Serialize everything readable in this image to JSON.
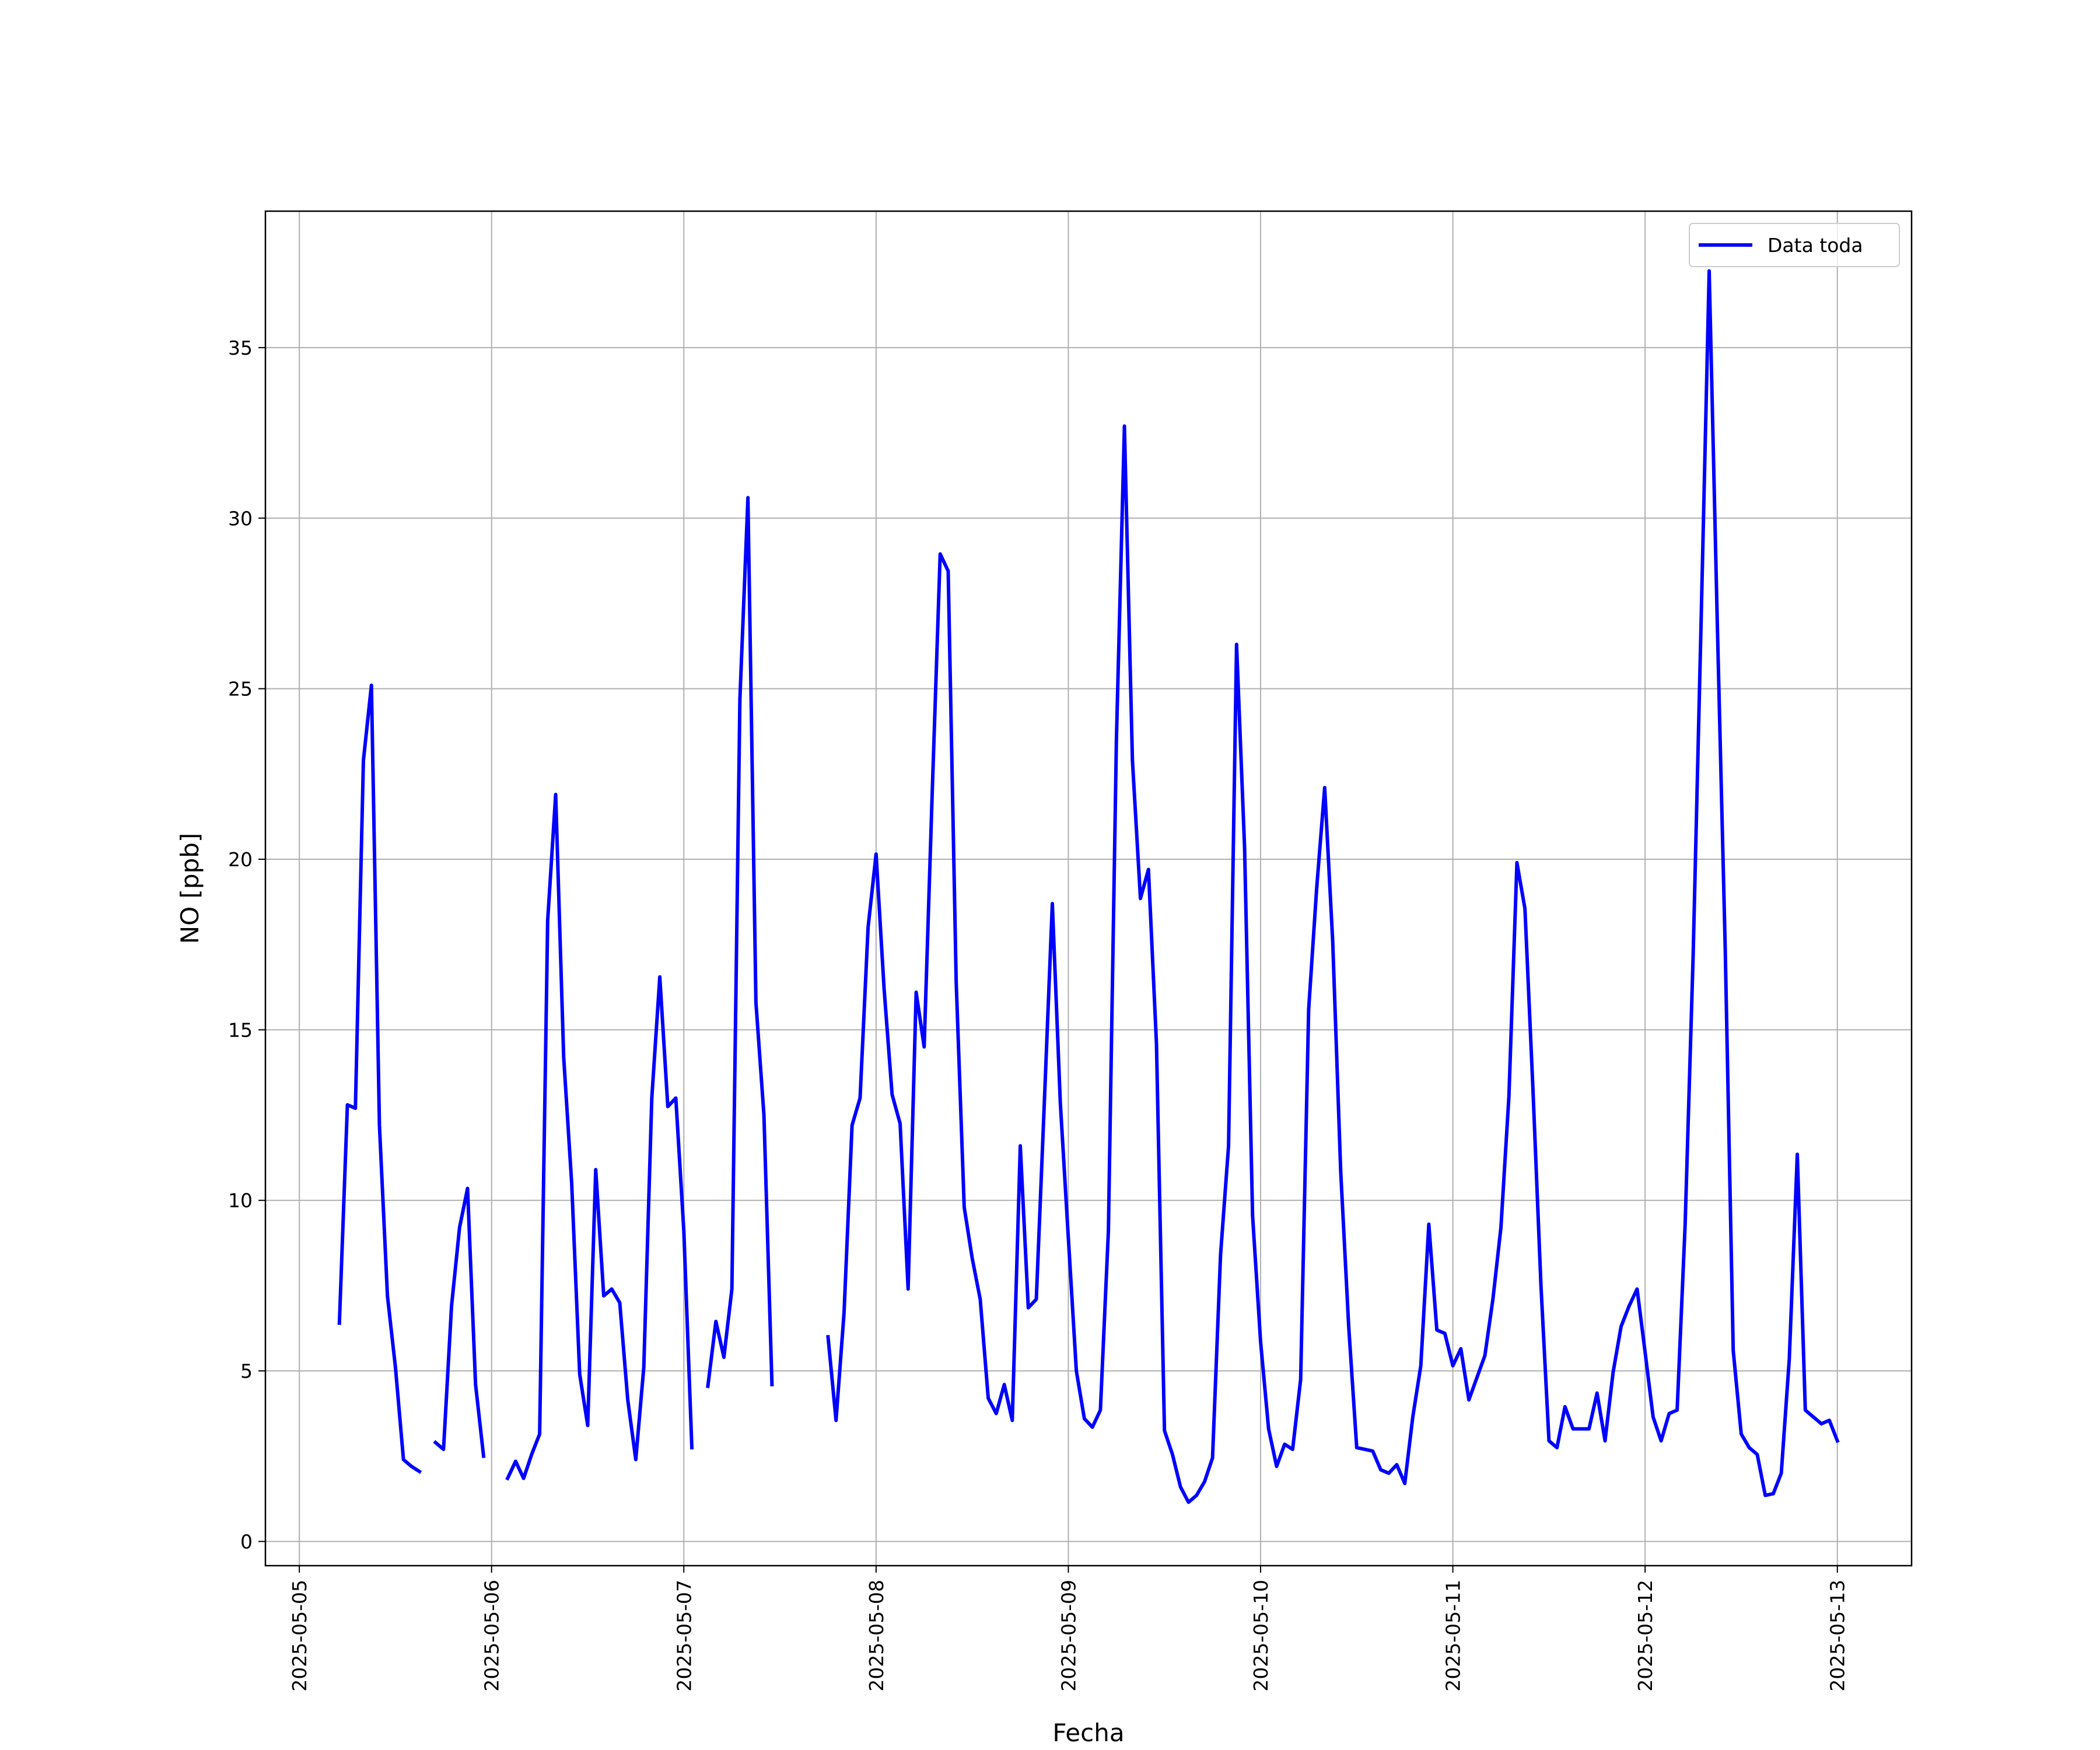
{
  "chart_data": {
    "type": "line",
    "xlabel": "Fecha",
    "ylabel": "NO [ppb]",
    "xlim": [
      "2025-05-04 19:46",
      "2025-05-13 09:16"
    ],
    "xticks": [
      "2025-05-05",
      "2025-05-06",
      "2025-05-07",
      "2025-05-08",
      "2025-05-09",
      "2025-05-10",
      "2025-05-11",
      "2025-05-12",
      "2025-05-13"
    ],
    "ylim": [
      -0.71,
      39.0
    ],
    "yticks": [
      0,
      5,
      10,
      15,
      20,
      25,
      30,
      35
    ],
    "grid": true,
    "legend": "upper right",
    "x": [
      "2025-05-05 05:00",
      "2025-05-05 06:00",
      "2025-05-05 07:00",
      "2025-05-05 08:00",
      "2025-05-05 09:00",
      "2025-05-05 10:00",
      "2025-05-05 11:00",
      "2025-05-05 12:00",
      "2025-05-05 13:00",
      "2025-05-05 14:00",
      "2025-05-05 15:00",
      "2025-05-05 16:00",
      "2025-05-05 17:00",
      "2025-05-05 18:00",
      "2025-05-05 19:00",
      "2025-05-05 20:00",
      "2025-05-05 21:00",
      "2025-05-05 22:00",
      "2025-05-05 23:00",
      "2025-05-06 00:00",
      "2025-05-06 01:00",
      "2025-05-06 02:00",
      "2025-05-06 03:00",
      "2025-05-06 04:00",
      "2025-05-06 05:00",
      "2025-05-06 06:00",
      "2025-05-06 07:00",
      "2025-05-06 08:00",
      "2025-05-06 09:00",
      "2025-05-06 10:00",
      "2025-05-06 11:00",
      "2025-05-06 12:00",
      "2025-05-06 13:00",
      "2025-05-06 14:00",
      "2025-05-06 15:00",
      "2025-05-06 16:00",
      "2025-05-06 17:00",
      "2025-05-06 18:00",
      "2025-05-06 19:00",
      "2025-05-06 20:00",
      "2025-05-06 21:00",
      "2025-05-06 22:00",
      "2025-05-06 23:00",
      "2025-05-07 00:00",
      "2025-05-07 01:00",
      "2025-05-07 02:00",
      "2025-05-07 03:00",
      "2025-05-07 04:00",
      "2025-05-07 05:00",
      "2025-05-07 06:00",
      "2025-05-07 07:00",
      "2025-05-07 08:00",
      "2025-05-07 09:00",
      "2025-05-07 10:00",
      "2025-05-07 11:00",
      "2025-05-07 12:00",
      "2025-05-07 13:00",
      "2025-05-07 14:00",
      "2025-05-07 15:00",
      "2025-05-07 16:00",
      "2025-05-07 17:00",
      "2025-05-07 18:00",
      "2025-05-07 19:00",
      "2025-05-07 20:00",
      "2025-05-07 21:00",
      "2025-05-07 22:00",
      "2025-05-07 23:00",
      "2025-05-08 00:00",
      "2025-05-08 01:00",
      "2025-05-08 02:00",
      "2025-05-08 03:00",
      "2025-05-08 04:00",
      "2025-05-08 05:00",
      "2025-05-08 06:00",
      "2025-05-08 07:00",
      "2025-05-08 08:00",
      "2025-05-08 09:00",
      "2025-05-08 10:00",
      "2025-05-08 11:00",
      "2025-05-08 12:00",
      "2025-05-08 13:00",
      "2025-05-08 14:00",
      "2025-05-08 15:00",
      "2025-05-08 16:00",
      "2025-05-08 17:00",
      "2025-05-08 18:00",
      "2025-05-08 19:00",
      "2025-05-08 20:00",
      "2025-05-08 21:00",
      "2025-05-08 22:00",
      "2025-05-08 23:00",
      "2025-05-09 00:00",
      "2025-05-09 01:00",
      "2025-05-09 02:00",
      "2025-05-09 03:00",
      "2025-05-09 04:00",
      "2025-05-09 05:00",
      "2025-05-09 06:00",
      "2025-05-09 07:00",
      "2025-05-09 08:00",
      "2025-05-09 09:00",
      "2025-05-09 10:00",
      "2025-05-09 11:00",
      "2025-05-09 12:00",
      "2025-05-09 13:00",
      "2025-05-09 14:00",
      "2025-05-09 15:00",
      "2025-05-09 16:00",
      "2025-05-09 17:00",
      "2025-05-09 18:00",
      "2025-05-09 19:00",
      "2025-05-09 20:00",
      "2025-05-09 21:00",
      "2025-05-09 22:00",
      "2025-05-09 23:00",
      "2025-05-10 00:00",
      "2025-05-10 01:00",
      "2025-05-10 02:00",
      "2025-05-10 03:00",
      "2025-05-10 04:00",
      "2025-05-10 05:00",
      "2025-05-10 06:00",
      "2025-05-10 07:00",
      "2025-05-10 08:00",
      "2025-05-10 09:00",
      "2025-05-10 10:00",
      "2025-05-10 11:00",
      "2025-05-10 12:00",
      "2025-05-10 13:00",
      "2025-05-10 14:00",
      "2025-05-10 15:00",
      "2025-05-10 16:00",
      "2025-05-10 17:00",
      "2025-05-10 18:00",
      "2025-05-10 19:00",
      "2025-05-10 20:00",
      "2025-05-10 21:00",
      "2025-05-10 22:00",
      "2025-05-10 23:00",
      "2025-05-11 00:00",
      "2025-05-11 01:00",
      "2025-05-11 02:00",
      "2025-05-11 03:00",
      "2025-05-11 04:00",
      "2025-05-11 05:00",
      "2025-05-11 06:00",
      "2025-05-11 07:00",
      "2025-05-11 08:00",
      "2025-05-11 09:00",
      "2025-05-11 10:00",
      "2025-05-11 11:00",
      "2025-05-11 12:00",
      "2025-05-11 13:00",
      "2025-05-11 14:00",
      "2025-05-11 15:00",
      "2025-05-11 16:00",
      "2025-05-11 17:00",
      "2025-05-11 18:00",
      "2025-05-11 19:00",
      "2025-05-11 20:00",
      "2025-05-11 21:00",
      "2025-05-11 22:00",
      "2025-05-11 23:00",
      "2025-05-12 00:00",
      "2025-05-12 01:00",
      "2025-05-12 02:00",
      "2025-05-12 03:00",
      "2025-05-12 04:00",
      "2025-05-12 05:00",
      "2025-05-12 06:00",
      "2025-05-12 07:00",
      "2025-05-12 08:00",
      "2025-05-12 09:00",
      "2025-05-12 10:00",
      "2025-05-12 11:00",
      "2025-05-12 12:00",
      "2025-05-12 13:00",
      "2025-05-12 14:00",
      "2025-05-12 15:00",
      "2025-05-12 16:00",
      "2025-05-12 17:00",
      "2025-05-12 18:00",
      "2025-05-12 19:00",
      "2025-05-12 20:00",
      "2025-05-12 21:00",
      "2025-05-12 22:00",
      "2025-05-12 23:00",
      "2025-05-13 00:00"
    ],
    "series": [
      {
        "name": "Data toda",
        "color": "#0000ff",
        "values": [
          6.4,
          12.8,
          12.7,
          22.9,
          25.1,
          12.2,
          7.2,
          5.1,
          2.4,
          2.2,
          2.05,
          null,
          2.9,
          2.7,
          6.9,
          9.2,
          10.35,
          4.6,
          2.5,
          null,
          null,
          1.85,
          2.35,
          1.85,
          2.55,
          3.15,
          18.2,
          21.9,
          14.2,
          10.5,
          4.9,
          3.4,
          10.9,
          7.2,
          7.4,
          7.0,
          4.15,
          2.4,
          5.1,
          13.0,
          16.55,
          12.75,
          13.0,
          9.1,
          2.75,
          null,
          4.55,
          6.45,
          5.4,
          7.4,
          24.7,
          30.6,
          15.8,
          12.5,
          4.6,
          null,
          null,
          null,
          null,
          null,
          null,
          6.0,
          3.55,
          6.7,
          12.2,
          13.0,
          18.0,
          20.15,
          16.2,
          13.1,
          12.25,
          7.4,
          16.1,
          14.5,
          21.9,
          28.95,
          28.45,
          16.4,
          9.8,
          8.3,
          7.1,
          4.2,
          3.75,
          4.6,
          3.55,
          11.6,
          6.85,
          7.1,
          12.85,
          18.7,
          12.85,
          8.9,
          5.0,
          3.6,
          3.35,
          3.85,
          9.1,
          23.5,
          32.7,
          22.9,
          18.85,
          19.7,
          14.6,
          3.25,
          2.55,
          1.6,
          1.15,
          1.35,
          1.75,
          2.45,
          8.4,
          11.6,
          26.3,
          20.35,
          9.55,
          5.85,
          3.3,
          2.2,
          2.85,
          2.7,
          4.75,
          15.6,
          19.15,
          22.1,
          17.6,
          10.85,
          6.3,
          2.75,
          2.7,
          2.65,
          2.1,
          2.0,
          2.25,
          1.7,
          3.65,
          5.15,
          9.3,
          6.2,
          6.1,
          5.15,
          5.65,
          4.15,
          4.8,
          5.45,
          7.1,
          9.2,
          13.05,
          19.9,
          18.55,
          13.25,
          7.5,
          2.95,
          2.75,
          3.95,
          3.3,
          3.3,
          3.3,
          4.35,
          2.95,
          4.95,
          6.3,
          6.9,
          7.4,
          5.55,
          3.65,
          2.95,
          3.75,
          3.85,
          9.3,
          17.2,
          27.05,
          37.25,
          27.05,
          17.4,
          5.6,
          3.15,
          2.75,
          2.55,
          1.35,
          1.4,
          2.0,
          5.35,
          11.35,
          3.85,
          3.65,
          3.45,
          3.55,
          2.95
        ]
      }
    ]
  }
}
